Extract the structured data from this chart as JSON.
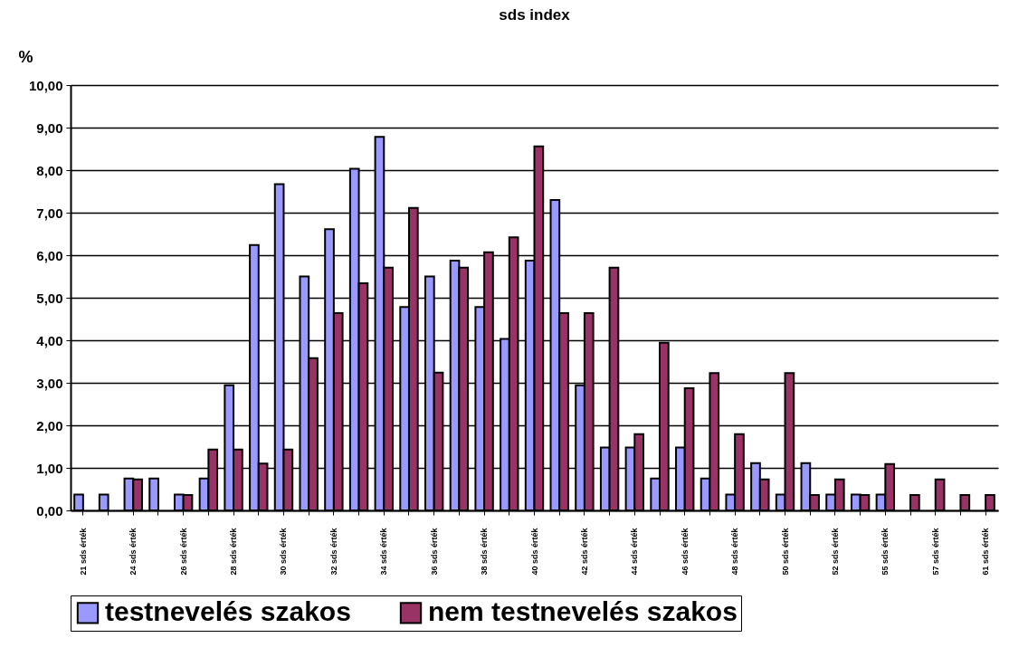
{
  "chart_data": {
    "type": "bar",
    "title": "sds index",
    "ylabel": "%",
    "categories": [
      "21 sds érték",
      null,
      "24 sds érték",
      null,
      "26 sds érték",
      null,
      "28 sds érték",
      null,
      "30 sds érték",
      null,
      "32 sds érték",
      null,
      "34 sds érték",
      null,
      "36 sds érték",
      null,
      "38 sds érték",
      null,
      "40 sds érték",
      null,
      "42 sds érték",
      null,
      "44 sds érték",
      null,
      "46 sds érték",
      null,
      "48 sds érték",
      null,
      "50 sds érték",
      null,
      "52 sds érték",
      null,
      "55 sds érték",
      null,
      "57 sds érték",
      null,
      "61 sds érték"
    ],
    "series": [
      {
        "name": "testnevelés szakos",
        "color": "#9999ff",
        "values": [
          0.37,
          0.37,
          0.75,
          0.75,
          0.37,
          0.75,
          2.94,
          6.24,
          7.67,
          5.5,
          6.61,
          8.03,
          8.78,
          4.78,
          5.5,
          5.87,
          4.78,
          4.03,
          5.87,
          7.3,
          2.94,
          1.48,
          1.48,
          0.75,
          1.48,
          0.75,
          0.37,
          1.11,
          0.37,
          1.11,
          0.37,
          0.37,
          0.37,
          null,
          null,
          null,
          null
        ]
      },
      {
        "name": "nem testnevelés szakos",
        "color": "#993366",
        "values": [
          null,
          null,
          0.73,
          null,
          0.36,
          1.43,
          1.43,
          1.1,
          1.43,
          3.58,
          4.64,
          5.34,
          5.71,
          7.11,
          3.24,
          5.71,
          6.07,
          6.42,
          8.56,
          4.64,
          4.64,
          5.71,
          1.79,
          3.94,
          2.87,
          3.23,
          1.79,
          0.73,
          3.23,
          0.36,
          0.73,
          0.36,
          1.09,
          0.36,
          0.73,
          0.36,
          0.36
        ]
      }
    ],
    "ylim": [
      0,
      10
    ],
    "yticks": [
      {
        "value": 0,
        "label": "0,00"
      },
      {
        "value": 1,
        "label": "1,00"
      },
      {
        "value": 2,
        "label": "2,00"
      },
      {
        "value": 3,
        "label": "3,00"
      },
      {
        "value": 4,
        "label": "4,00"
      },
      {
        "value": 5,
        "label": "5,00"
      },
      {
        "value": 6,
        "label": "6,00"
      },
      {
        "value": 7,
        "label": "7,00"
      },
      {
        "value": 8,
        "label": "8,00"
      },
      {
        "value": 9,
        "label": "9,00"
      },
      {
        "value": 10,
        "label": "10,00"
      }
    ],
    "grid": "y",
    "legend": "bottom"
  }
}
